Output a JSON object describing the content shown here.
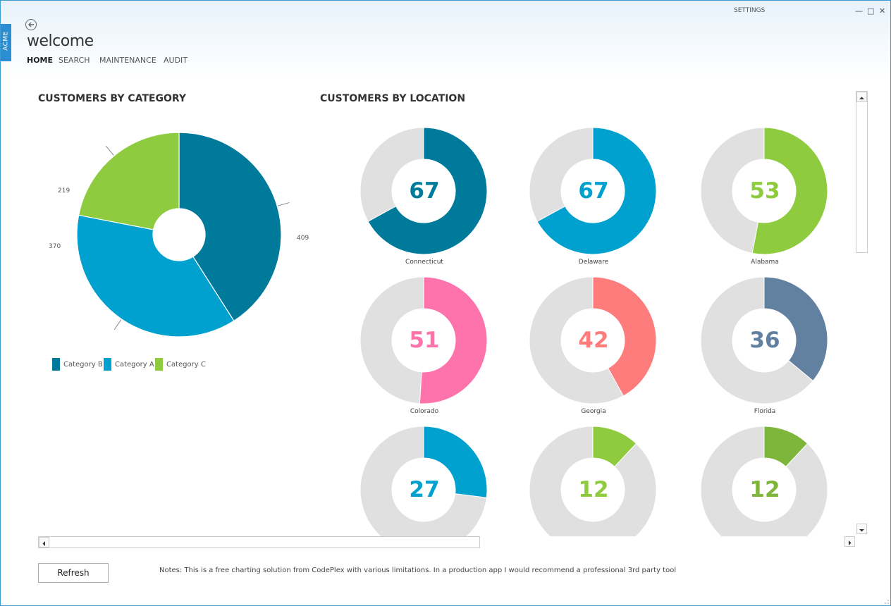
{
  "app": {
    "tab_label": "ACME",
    "settings_label": "SETTINGS",
    "title": "welcome",
    "window_controls": [
      "—",
      "□",
      "✕"
    ]
  },
  "nav": [
    {
      "label": "HOME",
      "active": true
    },
    {
      "label": "SEARCH",
      "active": false
    },
    {
      "label": "MAINTENANCE",
      "active": false
    },
    {
      "label": "AUDIT",
      "active": false
    }
  ],
  "category_section": {
    "title": "CUSTOMERS BY CATEGORY"
  },
  "location_section": {
    "title": "CUSTOMERS BY LOCATION"
  },
  "chart_data": [
    {
      "type": "pie",
      "categories": [
        "Category B",
        "Category A",
        "Category C"
      ],
      "values": [
        409,
        370,
        219
      ],
      "colors": [
        "#007a9b",
        "#00a1cf",
        "#8ecb3e"
      ],
      "labels": [
        "409",
        "370",
        "219"
      ],
      "legend": "bottom-left"
    },
    {
      "type": "pie",
      "categories": [
        "Connecticut",
        "Delaware",
        "Alabama",
        "Colorado",
        "Georgia",
        "Florida",
        "",
        "",
        ""
      ],
      "values": [
        67,
        67,
        53,
        51,
        42,
        36,
        27,
        12,
        12
      ],
      "labels": [
        "67",
        "67",
        "53",
        "51",
        "42",
        "36",
        "27",
        "12",
        "12"
      ],
      "colors": [
        "#007a9b",
        "#00a1cf",
        "#8ecb3e",
        "#ff73ad",
        "#ff7c7c",
        "#6281a1",
        "#00a1cf",
        "#8ecb3e",
        "#7db63b"
      ],
      "remainder_color": "#e0e0e0"
    }
  ],
  "footer": {
    "refresh_label": "Refresh",
    "notes": "Notes: This is a free charting solution from CodePlex with various limitations.  In a production app I would recommend a professional 3rd party tool"
  }
}
